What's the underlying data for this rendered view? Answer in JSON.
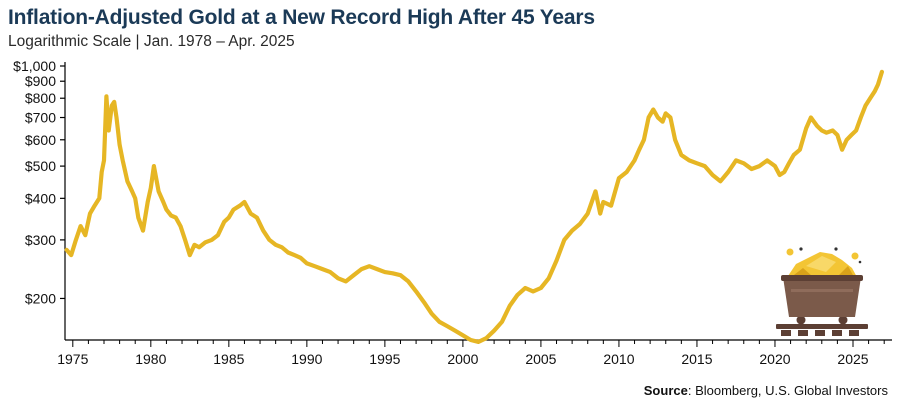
{
  "title": "Inflation-Adjusted Gold at a New Record High After 45 Years",
  "subtitle": "Logarithmic Scale | Jan. 1978 – Apr. 2025",
  "source": {
    "label": "Source",
    "text": ": Bloomberg, U.S. Global Investors"
  },
  "colors": {
    "line": "#e6b624",
    "axis": "#000000",
    "cart_body": "#7b5a4a",
    "cart_rim": "#5c3f34",
    "gold": "#f3c534",
    "track": "#5c3f34"
  },
  "icons": [
    "mine-cart-icon"
  ],
  "chart_data": {
    "type": "line",
    "scale": "log",
    "grid": false,
    "ylim": [
      150,
      1000
    ],
    "xlim": [
      1974.5,
      2027.5
    ],
    "y_ticks": [
      200,
      300,
      400,
      500,
      600,
      700,
      800,
      900,
      1000
    ],
    "y_tick_labels": [
      "$200",
      "$300",
      "$400",
      "$500",
      "$600",
      "$700",
      "$800",
      "$900",
      "$1,000"
    ],
    "x_ticks": [
      1975,
      1980,
      1985,
      1990,
      1995,
      2000,
      2005,
      2010,
      2015,
      2020,
      2025
    ],
    "x_tick_labels": [
      "1975",
      "1980",
      "1985",
      "1990",
      "1995",
      "2000",
      "2005",
      "2010",
      "2015",
      "2020",
      "2025"
    ],
    "series": [
      {
        "x": [
          1974.6,
          1974.9,
          1975.2,
          1975.5,
          1975.8,
          1976.1,
          1976.4,
          1976.7,
          1976.85,
          1977.0,
          1977.15,
          1977.3,
          1977.5,
          1977.65,
          1977.8,
          1978.0,
          1978.2,
          1978.5,
          1978.8,
          1979.0,
          1979.2,
          1979.5,
          1979.8,
          1980.0,
          1980.2,
          1980.5,
          1980.8,
          1981.0,
          1981.3,
          1981.6,
          1981.9,
          1982.2,
          1982.5,
          1982.8,
          1983.1,
          1983.5,
          1983.9,
          1984.3,
          1984.7,
          1985.0,
          1985.3,
          1985.7,
          1986.0,
          1986.4,
          1986.8,
          1987.2,
          1987.6,
          1988.0,
          1988.4,
          1988.8,
          1989.2,
          1989.6,
          1990.0,
          1990.5,
          1991.0,
          1991.5,
          1992.0,
          1992.5,
          1993.0,
          1993.5,
          1994.0,
          1994.5,
          1995.0,
          1995.5,
          1996.0,
          1996.5,
          1997.0,
          1997.5,
          1998.0,
          1998.5,
          1999.0,
          1999.5,
          2000.0,
          2000.5,
          2001.0,
          2001.5,
          2002.0,
          2002.5,
          2003.0,
          2003.5,
          2004.0,
          2004.5,
          2005.0,
          2005.5,
          2006.0,
          2006.5,
          2007.0,
          2007.5,
          2008.0,
          2008.5,
          2008.8,
          2009.0,
          2009.5,
          2010.0,
          2010.5,
          2011.0,
          2011.3,
          2011.6,
          2011.9,
          2012.2,
          2012.5,
          2012.8,
          2013.0,
          2013.3,
          2013.6,
          2014.0,
          2014.5,
          2015.0,
          2015.5,
          2016.0,
          2016.5,
          2017.0,
          2017.5,
          2018.0,
          2018.5,
          2019.0,
          2019.5,
          2020.0,
          2020.3,
          2020.6,
          2020.9,
          2021.2,
          2021.6,
          2022.0,
          2022.3,
          2022.7,
          2023.0,
          2023.3,
          2023.7,
          2024.0,
          2024.3,
          2024.6,
          2024.9,
          2025.2,
          2025.5,
          2025.8,
          2026.1,
          2026.4,
          2026.6,
          2026.85
        ],
        "values": [
          280,
          270,
          300,
          330,
          310,
          360,
          380,
          400,
          480,
          520,
          810,
          640,
          760,
          780,
          700,
          580,
          520,
          450,
          420,
          400,
          350,
          320,
          390,
          430,
          500,
          420,
          390,
          370,
          355,
          350,
          330,
          300,
          270,
          290,
          285,
          295,
          300,
          310,
          340,
          350,
          370,
          380,
          390,
          360,
          350,
          320,
          300,
          290,
          285,
          275,
          270,
          265,
          255,
          250,
          245,
          240,
          230,
          225,
          235,
          245,
          250,
          245,
          240,
          238,
          235,
          225,
          210,
          195,
          180,
          170,
          165,
          160,
          155,
          150,
          148,
          152,
          160,
          170,
          190,
          205,
          215,
          210,
          215,
          230,
          260,
          300,
          320,
          335,
          360,
          420,
          360,
          390,
          380,
          460,
          480,
          520,
          560,
          600,
          700,
          740,
          700,
          680,
          720,
          700,
          600,
          540,
          520,
          510,
          500,
          470,
          450,
          480,
          520,
          510,
          490,
          500,
          520,
          500,
          470,
          480,
          510,
          540,
          560,
          650,
          700,
          660,
          640,
          630,
          640,
          620,
          560,
          600,
          620,
          640,
          700,
          760,
          800,
          840,
          880,
          960
        ]
      }
    ]
  }
}
